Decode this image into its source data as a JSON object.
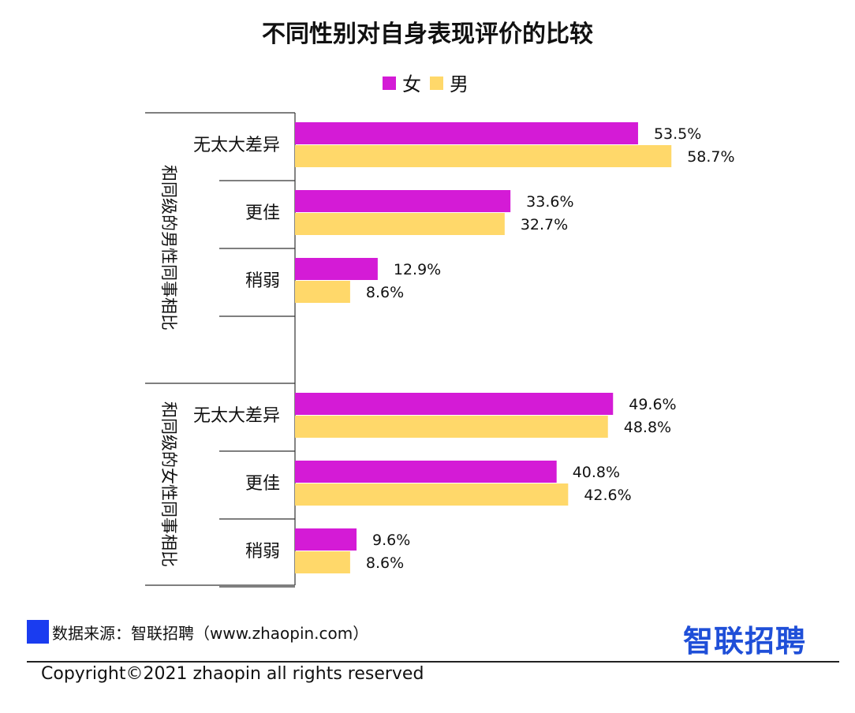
{
  "chart_data": {
    "type": "bar",
    "orientation": "horizontal",
    "title": "不同性别对自身表现评价的比较",
    "legend": {
      "position": "top",
      "items": [
        {
          "name": "女",
          "color": "#d41bd6"
        },
        {
          "name": "男",
          "color": "#ffd86a"
        }
      ]
    },
    "xlim": [
      0,
      80
    ],
    "grid": false,
    "groups": [
      {
        "label": "和同级的男性同事相比",
        "categories": [
          "无太大差异",
          "更佳",
          "稍弱"
        ],
        "series": [
          {
            "name": "女",
            "values": [
              53.5,
              33.6,
              12.9
            ],
            "labels": [
              "53.5%",
              "33.6%",
              "12.9%"
            ]
          },
          {
            "name": "男",
            "values": [
              58.7,
              32.7,
              8.6
            ],
            "labels": [
              "58.7%",
              "32.7%",
              "8.6%"
            ]
          }
        ]
      },
      {
        "label": "和同级的女性同事相比",
        "categories": [
          "无太大差异",
          "更佳",
          "稍弱"
        ],
        "series": [
          {
            "name": "女",
            "values": [
              49.6,
              40.8,
              9.6
            ],
            "labels": [
              "49.6%",
              "40.8%",
              "9.6%"
            ]
          },
          {
            "name": "男",
            "values": [
              48.8,
              42.6,
              8.6
            ],
            "labels": [
              "48.8%",
              "42.6%",
              "8.6%"
            ]
          }
        ]
      }
    ]
  },
  "footer": {
    "source": "数据来源：智联招聘（www.zhaopin.com）",
    "brand": "智联招聘",
    "copyright": "Copyright©2021 zhaopin all rights reserved"
  },
  "colors": {
    "female": "#d41bd6",
    "male": "#ffd86a",
    "brand_blue": "#1f4fd8",
    "source_marker": "#1a3cf0"
  }
}
